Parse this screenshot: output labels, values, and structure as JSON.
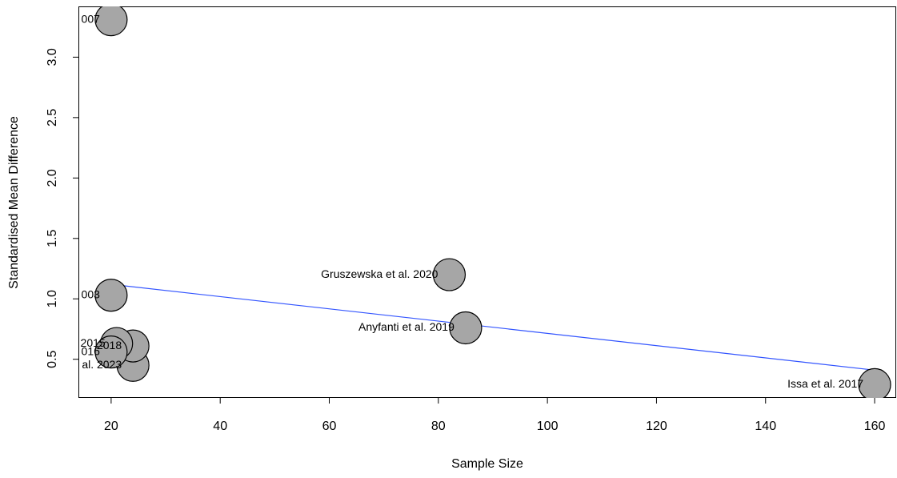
{
  "chart_data": {
    "type": "scatter",
    "x_label": "Sample Size",
    "y_label": "Standardised Mean Difference",
    "x": [
      20,
      20,
      82,
      85,
      160,
      24,
      24,
      21,
      20
    ],
    "values": [
      3.31,
      1.03,
      1.2,
      0.76,
      0.29,
      0.45,
      0.61,
      0.63,
      0.56
    ],
    "point_labels": [
      "007",
      "003",
      "Gruszewska et al. 2020",
      "Anyfanti et al. 2019",
      "Issa et al. 2017",
      "al. 2023",
      "2018",
      "2015",
      "016"
    ],
    "color": "#a6a6a6",
    "fit": {
      "x": [
        20,
        160
      ],
      "values": [
        1.12,
        0.41
      ],
      "color": "#3355ff"
    },
    "xlim": [
      14,
      164.1
    ],
    "ylim": [
      0.18,
      3.42
    ],
    "xticks": [
      20,
      40,
      60,
      80,
      100,
      120,
      140,
      160
    ],
    "yticks": [
      0.5,
      {
        "value": 1,
        "label": "1.0"
      },
      1.5,
      {
        "value": 2,
        "label": "2.0"
      },
      2.5,
      {
        "value": 3,
        "label": "3.0"
      }
    ]
  }
}
